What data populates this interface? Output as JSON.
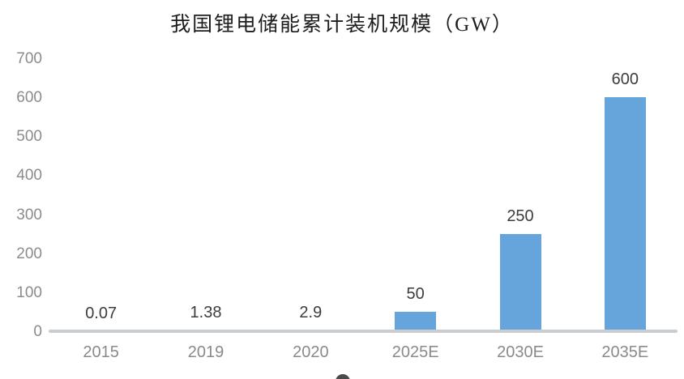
{
  "chart_data": {
    "type": "bar",
    "title": "我国锂电储能累计装机规模（GW）",
    "categories": [
      "2015",
      "2019",
      "2020",
      "2025E",
      "2030E",
      "2035E"
    ],
    "values": [
      0.07,
      1.38,
      2.9,
      50,
      250,
      600
    ],
    "value_labels": [
      "0.07",
      "1.38",
      "2.9",
      "50",
      "250",
      "600"
    ],
    "xlabel": "",
    "ylabel": "",
    "ylim": [
      0,
      700
    ],
    "y_ticks": [
      "0",
      "100",
      "200",
      "300",
      "400",
      "500",
      "600",
      "700"
    ],
    "grid": false,
    "legend": null,
    "bar_color": "#66a5db",
    "axis_line_color": "#cacdd0",
    "tick_label_color": "#8c8c8c",
    "value_label_color": "#3d3d3d",
    "title_color": "#1d1d1d"
  }
}
